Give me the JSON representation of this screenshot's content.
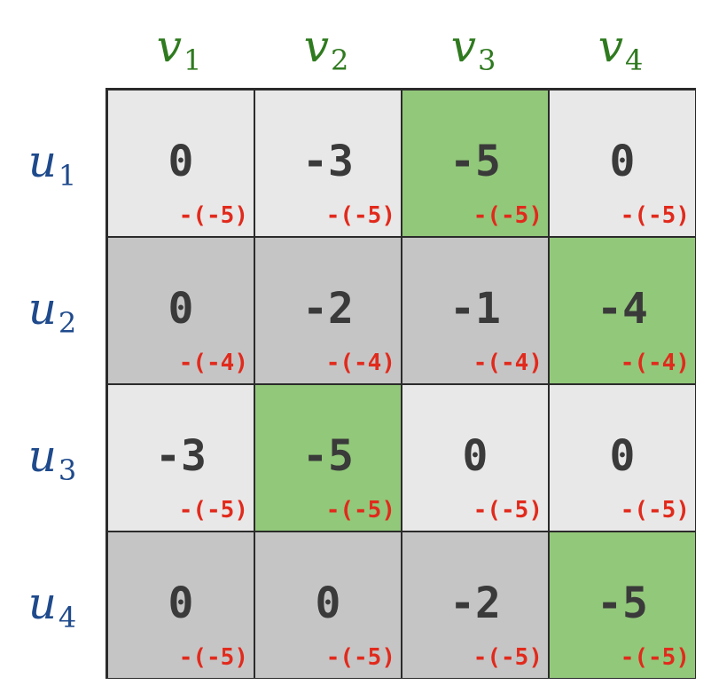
{
  "colors": {
    "column_label": "#2f7a1f",
    "row_label": "#1f4a8c",
    "light_row_fill": "#e8e8e8",
    "dark_row_fill": "#c6c5c6",
    "highlight_fill": "#92c87a",
    "value_text": "#3a3a3a",
    "subtract_text": "#e12a1c",
    "border": "#2b2b2b"
  },
  "columns": [
    {
      "base": "v",
      "sub": "1"
    },
    {
      "base": "v",
      "sub": "2"
    },
    {
      "base": "v",
      "sub": "3"
    },
    {
      "base": "v",
      "sub": "4"
    }
  ],
  "rows": [
    {
      "base": "u",
      "sub": "1",
      "shade": "light",
      "cells": [
        {
          "value": "0",
          "subtract": "-(-5)",
          "highlight": false
        },
        {
          "value": "-3",
          "subtract": "-(-5)",
          "highlight": false
        },
        {
          "value": "-5",
          "subtract": "-(-5)",
          "highlight": true
        },
        {
          "value": "0",
          "subtract": "-(-5)",
          "highlight": false
        }
      ]
    },
    {
      "base": "u",
      "sub": "2",
      "shade": "dark",
      "cells": [
        {
          "value": "0",
          "subtract": "-(-4)",
          "highlight": false
        },
        {
          "value": "-2",
          "subtract": "-(-4)",
          "highlight": false
        },
        {
          "value": "-1",
          "subtract": "-(-4)",
          "highlight": false
        },
        {
          "value": "-4",
          "subtract": "-(-4)",
          "highlight": true
        }
      ]
    },
    {
      "base": "u",
      "sub": "3",
      "shade": "light",
      "cells": [
        {
          "value": "-3",
          "subtract": "-(-5)",
          "highlight": false
        },
        {
          "value": "-5",
          "subtract": "-(-5)",
          "highlight": true
        },
        {
          "value": "0",
          "subtract": "-(-5)",
          "highlight": false
        },
        {
          "value": "0",
          "subtract": "-(-5)",
          "highlight": false
        }
      ]
    },
    {
      "base": "u",
      "sub": "4",
      "shade": "dark",
      "cells": [
        {
          "value": "0",
          "subtract": "-(-5)",
          "highlight": false
        },
        {
          "value": "0",
          "subtract": "-(-5)",
          "highlight": false
        },
        {
          "value": "-2",
          "subtract": "-(-5)",
          "highlight": false
        },
        {
          "value": "-5",
          "subtract": "-(-5)",
          "highlight": true
        }
      ]
    }
  ]
}
